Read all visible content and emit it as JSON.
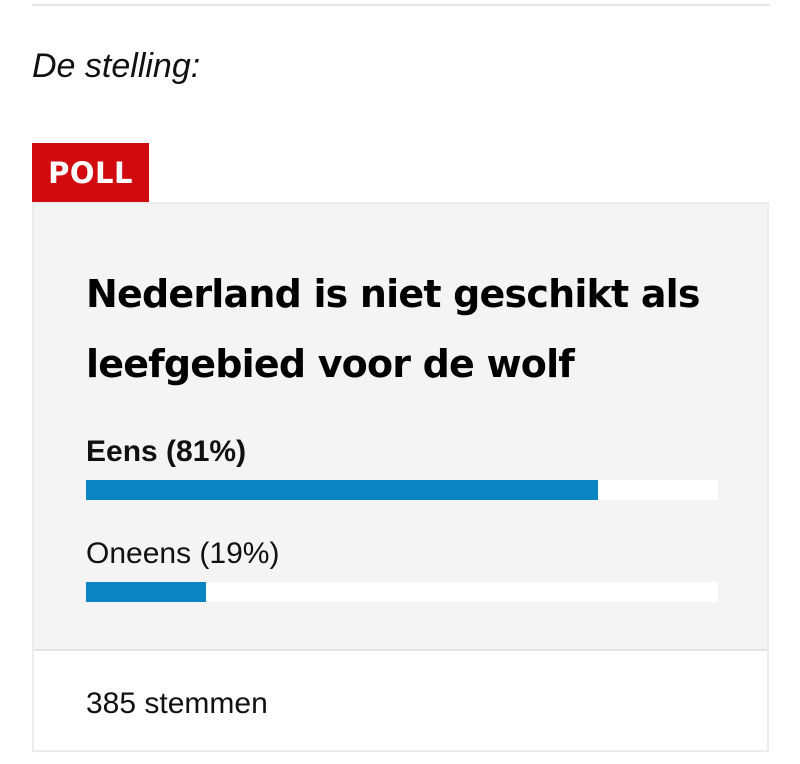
{
  "intro": {
    "text": "De stelling:"
  },
  "poll": {
    "badge": "POLL",
    "question": "Nederland is niet geschikt als leefgebied voor de wolf",
    "options": [
      {
        "label": "Eens (81%)",
        "percent": 81,
        "selected": true
      },
      {
        "label": "Oneens (19%)",
        "percent": 19,
        "selected": false
      }
    ],
    "votes": "385 stemmen"
  },
  "colors": {
    "badge": "#d10a10",
    "bar_fill": "#0a85c2",
    "bar_track": "#ffffff",
    "card_background": "#f4f4f4"
  }
}
